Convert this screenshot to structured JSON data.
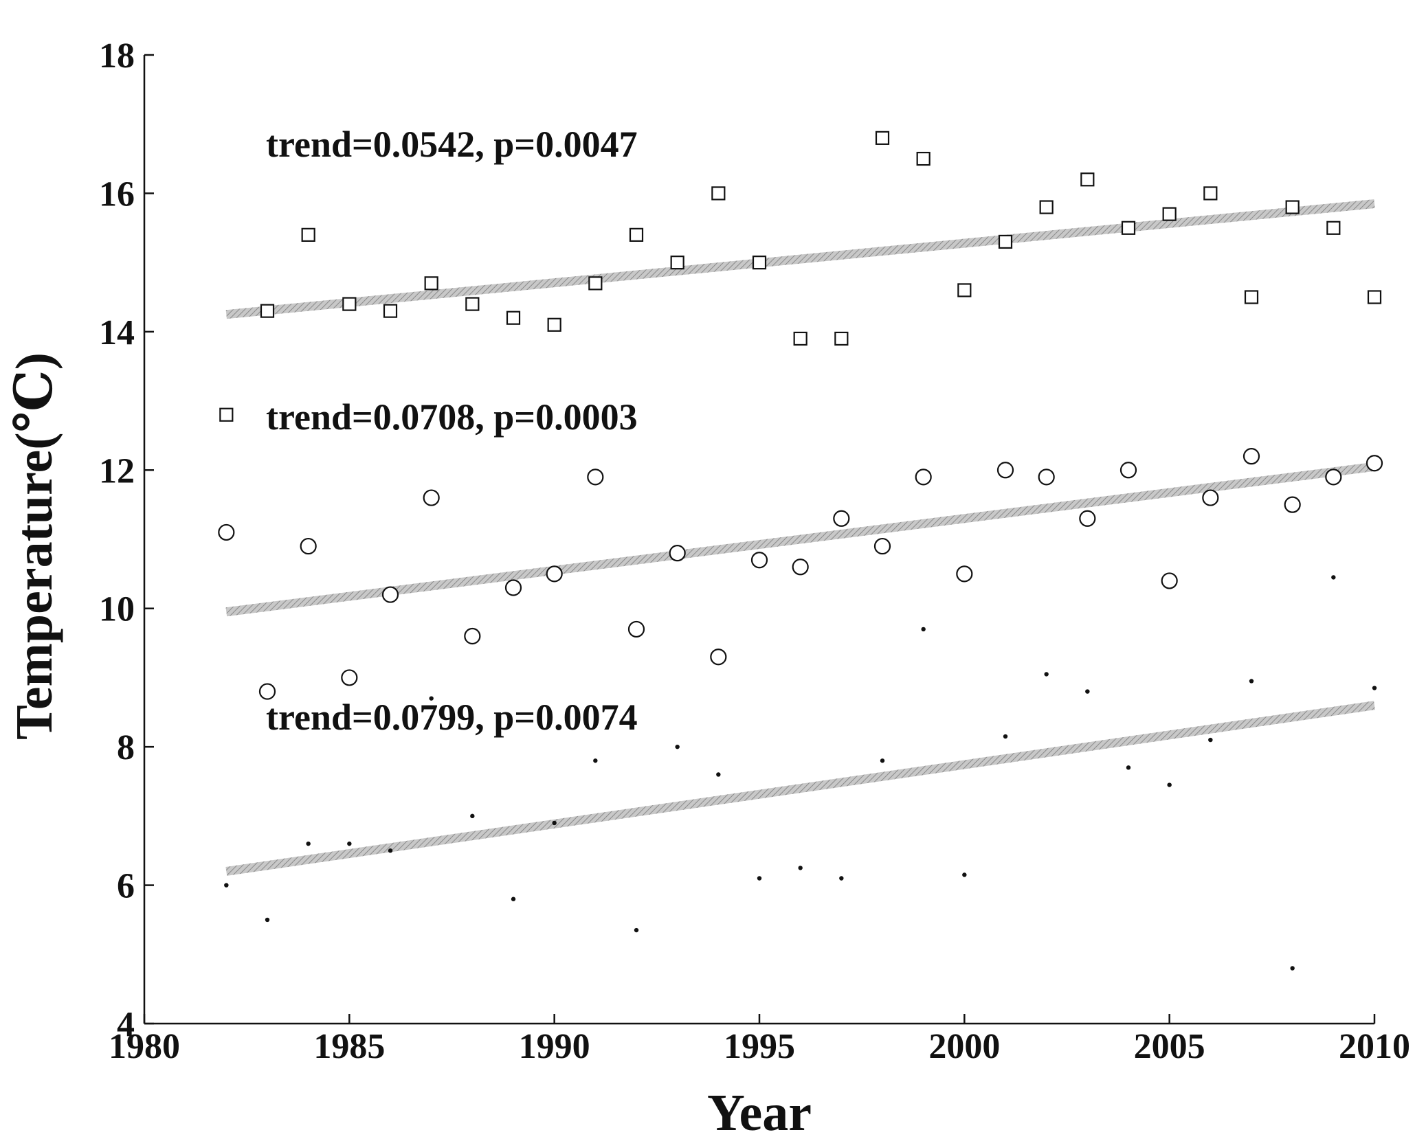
{
  "chart_data": {
    "type": "scatter",
    "xlabel": "Year",
    "ylabel": "Temperature(℃)",
    "xlim": [
      1980,
      2010
    ],
    "ylim": [
      4,
      18
    ],
    "xticks": [
      1980,
      1985,
      1990,
      1995,
      2000,
      2005,
      2010
    ],
    "yticks": [
      4,
      6,
      8,
      10,
      12,
      14,
      16,
      18
    ],
    "grid": false,
    "colors": {
      "markers": "#111111",
      "trend_line": "#b0b0b0"
    },
    "series": [
      {
        "marker": "square",
        "x": [
          1982,
          1983,
          1984,
          1985,
          1986,
          1987,
          1988,
          1989,
          1990,
          1991,
          1992,
          1993,
          1994,
          1995,
          1996,
          1997,
          1998,
          1999,
          2000,
          2001,
          2002,
          2003,
          2004,
          2005,
          2006,
          2007,
          2008,
          2009,
          2010
        ],
        "y": [
          12.8,
          14.3,
          15.4,
          14.4,
          14.3,
          14.7,
          14.4,
          14.2,
          14.1,
          14.7,
          15.4,
          15.0,
          16.0,
          15.0,
          13.9,
          13.9,
          16.8,
          16.5,
          14.6,
          15.3,
          15.8,
          16.2,
          15.5,
          15.7,
          16.0,
          14.5,
          15.8,
          15.5,
          14.5
        ],
        "trend": {
          "x": [
            1982,
            2010
          ],
          "y": [
            14.25,
            15.85
          ]
        },
        "annotation": "trend=0.0542, p=0.0047"
      },
      {
        "marker": "circle",
        "x": [
          1982,
          1983,
          1984,
          1985,
          1986,
          1987,
          1988,
          1989,
          1990,
          1991,
          1992,
          1993,
          1994,
          1995,
          1996,
          1997,
          1998,
          1999,
          2000,
          2001,
          2002,
          2003,
          2004,
          2005,
          2006,
          2007,
          2008,
          2009,
          2010
        ],
        "y": [
          11.1,
          8.8,
          10.9,
          9.0,
          10.2,
          11.6,
          9.6,
          10.3,
          10.5,
          11.9,
          9.7,
          10.8,
          9.3,
          10.7,
          10.6,
          11.3,
          10.9,
          11.9,
          10.5,
          12.0,
          11.9,
          11.3,
          12.0,
          10.4,
          11.6,
          12.2,
          11.5,
          11.9,
          12.1
        ],
        "trend": {
          "x": [
            1982,
            2010
          ],
          "y": [
            9.95,
            12.05
          ]
        },
        "annotation": "trend=0.0708, p=0.0003"
      },
      {
        "marker": "dot",
        "x": [
          1982,
          1983,
          1984,
          1985,
          1986,
          1987,
          1988,
          1989,
          1990,
          1991,
          1992,
          1993,
          1994,
          1995,
          1996,
          1997,
          1998,
          1999,
          2000,
          2001,
          2002,
          2003,
          2004,
          2005,
          2006,
          2007,
          2008,
          2009,
          2010
        ],
        "y": [
          6.0,
          5.5,
          6.6,
          6.6,
          6.5,
          8.7,
          7.0,
          5.8,
          6.9,
          7.8,
          5.35,
          8.0,
          7.6,
          6.1,
          6.25,
          6.1,
          7.8,
          9.7,
          6.15,
          8.15,
          9.05,
          8.8,
          7.7,
          7.45,
          8.1,
          8.95,
          4.8,
          10.45,
          8.85
        ],
        "trend": {
          "x": [
            1982,
            2010
          ],
          "y": [
            6.2,
            8.6
          ]
        },
        "annotation": "trend=0.0799, p=0.0074"
      }
    ]
  }
}
